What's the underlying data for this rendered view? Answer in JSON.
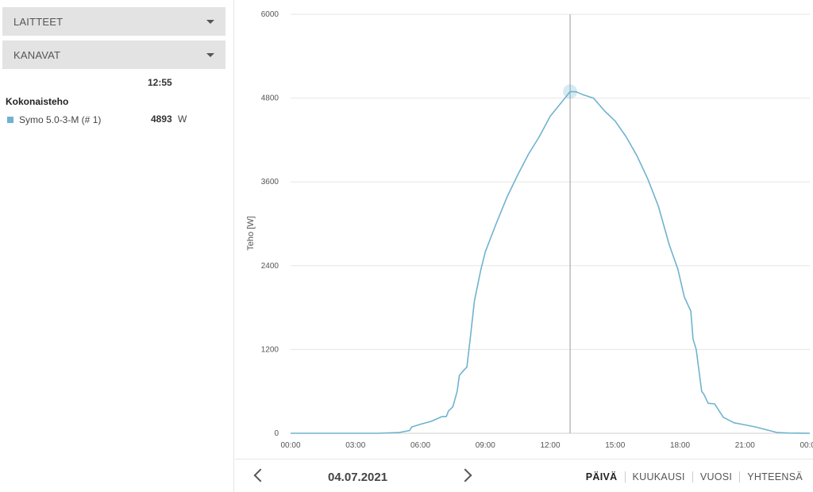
{
  "sidebar": {
    "devices_label": "LAITTEET",
    "channels_label": "KANAVAT",
    "time": "12:55",
    "total_title": "Kokonaisteho",
    "legend": {
      "name": "Symo 5.0-3-M (# 1)",
      "value": "4893",
      "unit": "W",
      "color": "#6fb3cf"
    }
  },
  "nav": {
    "date": "04.07.2021",
    "tabs": [
      {
        "label": "PÄIVÄ",
        "active": true
      },
      {
        "label": "KUUKAUSI",
        "active": false
      },
      {
        "label": "VUOSI",
        "active": false
      },
      {
        "label": "YHTEENSÄ",
        "active": false
      }
    ]
  },
  "chart_data": {
    "type": "line",
    "title": "",
    "xlabel": "",
    "ylabel": "Teho [W]",
    "ylim": [
      0,
      6000
    ],
    "xlim": [
      0,
      24
    ],
    "x_ticks": [
      "00:00",
      "03:00",
      "06:00",
      "09:00",
      "12:00",
      "15:00",
      "18:00",
      "21:00",
      "00:00"
    ],
    "y_ticks": [
      "0",
      "1200",
      "2400",
      "3600",
      "4800",
      "6000"
    ],
    "crosshair_hour": 12.92,
    "highlight": {
      "time": "12:55",
      "value": 4893
    },
    "series": [
      {
        "name": "Symo 5.0-3-M (# 1)",
        "color": "#6fb3cf",
        "points": [
          [
            0,
            0
          ],
          [
            4.0,
            0
          ],
          [
            5.0,
            10
          ],
          [
            5.5,
            40
          ],
          [
            5.6,
            90
          ],
          [
            6.0,
            130
          ],
          [
            6.5,
            170
          ],
          [
            7.0,
            240
          ],
          [
            7.2,
            240
          ],
          [
            7.3,
            320
          ],
          [
            7.5,
            380
          ],
          [
            7.7,
            600
          ],
          [
            7.8,
            830
          ],
          [
            8.0,
            900
          ],
          [
            8.15,
            950
          ],
          [
            8.3,
            1350
          ],
          [
            8.5,
            1900
          ],
          [
            8.8,
            2350
          ],
          [
            9.0,
            2600
          ],
          [
            9.5,
            3000
          ],
          [
            10.0,
            3380
          ],
          [
            10.5,
            3700
          ],
          [
            11.0,
            4000
          ],
          [
            11.5,
            4250
          ],
          [
            12.0,
            4540
          ],
          [
            12.5,
            4730
          ],
          [
            12.92,
            4893
          ],
          [
            13.2,
            4890
          ],
          [
            13.5,
            4850
          ],
          [
            14.0,
            4800
          ],
          [
            14.5,
            4620
          ],
          [
            15.0,
            4470
          ],
          [
            15.5,
            4250
          ],
          [
            16.0,
            3980
          ],
          [
            16.5,
            3650
          ],
          [
            17.0,
            3250
          ],
          [
            17.5,
            2700
          ],
          [
            17.9,
            2350
          ],
          [
            18.2,
            1950
          ],
          [
            18.5,
            1750
          ],
          [
            18.6,
            1350
          ],
          [
            18.75,
            1200
          ],
          [
            19.0,
            600
          ],
          [
            19.1,
            560
          ],
          [
            19.3,
            430
          ],
          [
            19.6,
            420
          ],
          [
            20.0,
            230
          ],
          [
            20.5,
            150
          ],
          [
            21.0,
            120
          ],
          [
            21.5,
            90
          ],
          [
            22.0,
            50
          ],
          [
            22.5,
            10
          ],
          [
            23.0,
            3
          ],
          [
            24.0,
            0
          ]
        ]
      }
    ]
  }
}
